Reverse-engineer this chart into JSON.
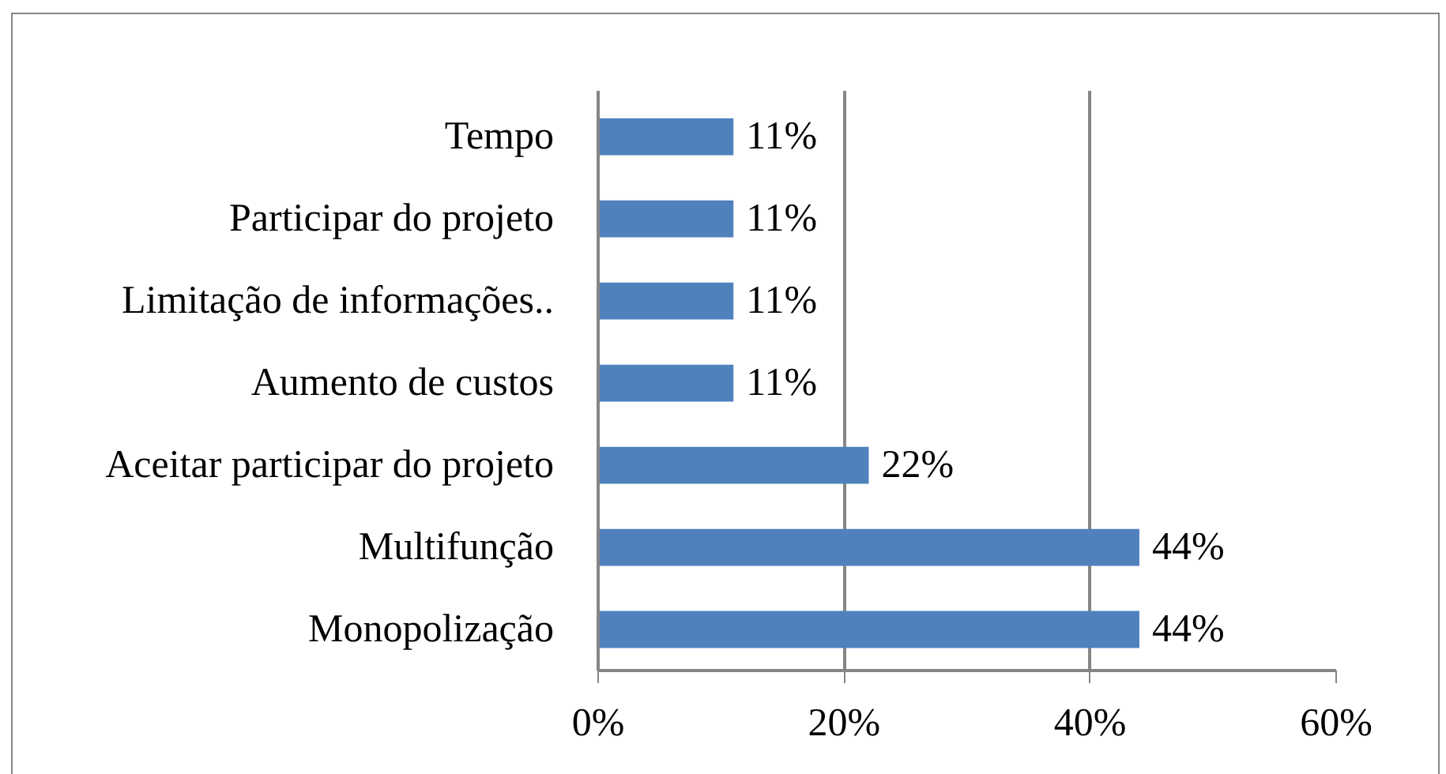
{
  "chart_data": {
    "type": "bar",
    "orientation": "horizontal",
    "categories": [
      "Tempo",
      "Participar do projeto",
      "Limitação de informações..",
      "Aumento de custos",
      "Aceitar participar do projeto",
      "Multifunção",
      "Monopolização"
    ],
    "values": [
      11,
      11,
      11,
      11,
      22,
      44,
      44
    ],
    "value_labels": [
      "11%",
      "11%",
      "11%",
      "11%",
      "22%",
      "44%",
      "44%"
    ],
    "color": "#4f81bd",
    "xlim": [
      0,
      60
    ],
    "xticks": [
      {
        "value": 0,
        "label": "0%"
      },
      {
        "value": 20,
        "label": "20%"
      },
      {
        "value": 40,
        "label": "40%"
      },
      {
        "value": 60,
        "label": "60%"
      }
    ],
    "grid": "x"
  }
}
